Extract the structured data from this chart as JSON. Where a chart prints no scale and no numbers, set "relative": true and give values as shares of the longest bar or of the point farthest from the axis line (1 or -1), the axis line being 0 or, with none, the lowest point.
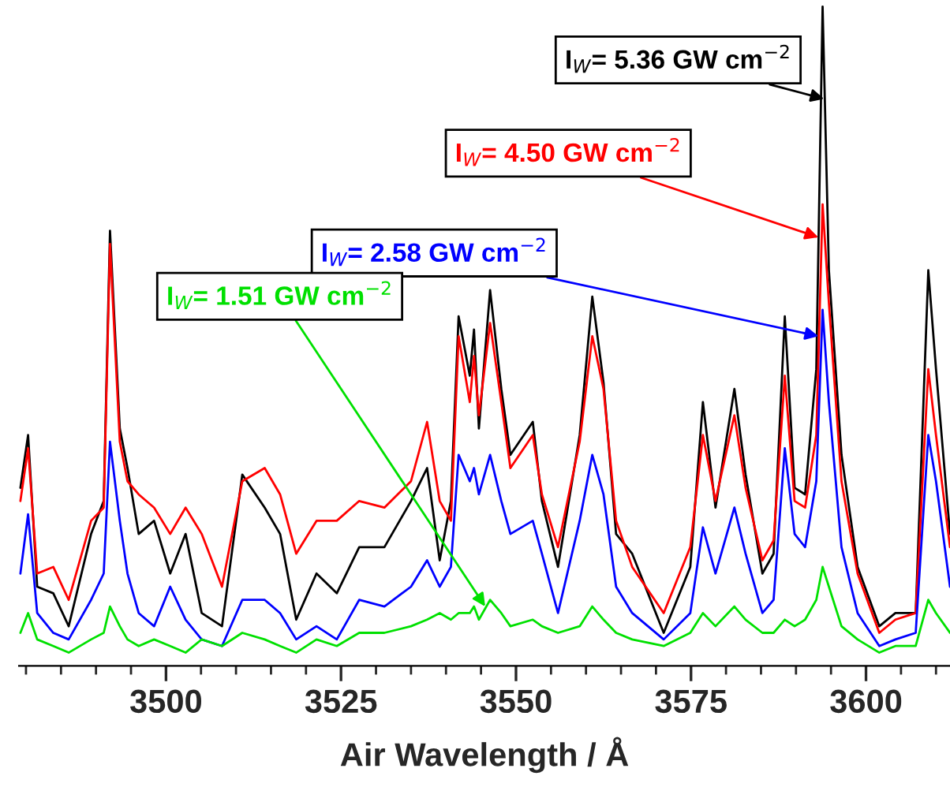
{
  "chart_data": {
    "type": "line",
    "relative": true,
    "xlabel": "Air Wavelength / Å",
    "x": [
      3479.2,
      3480.3,
      3481.6,
      3483.9,
      3486.1,
      3489.3,
      3491.1,
      3492.0,
      3493.4,
      3494.5,
      3496.1,
      3498.3,
      3500.6,
      3502.8,
      3505.1,
      3508.0,
      3510.9,
      3514.1,
      3516.3,
      3518.6,
      3521.5,
      3524.4,
      3527.6,
      3531.2,
      3535.0,
      3537.3,
      3539.1,
      3540.7,
      3541.8,
      3543.4,
      3544.0,
      3544.7,
      3546.3,
      3547.9,
      3549.2,
      3552.4,
      3553.7,
      3556.0,
      3559.1,
      3560.9,
      3562.5,
      3564.3,
      3566.6,
      3571.1,
      3574.9,
      3576.7,
      3578.5,
      3581.2,
      3582.8,
      3585.2,
      3586.8,
      3588.4,
      3589.8,
      3591.3,
      3592.9,
      3593.8,
      3594.7,
      3596.5,
      3598.8,
      3601.9,
      3604.2,
      3607.1,
      3608.9,
      3610.0,
      3612.0
    ],
    "xlim": [
      3479,
      3612
    ],
    "xticks": [
      {
        "value": 3480,
        "label": null
      },
      {
        "value": 3485,
        "label": null
      },
      {
        "value": 3490,
        "label": null
      },
      {
        "value": 3495,
        "label": null
      },
      3500,
      {
        "value": 3505,
        "label": null
      },
      {
        "value": 3510,
        "label": null
      },
      {
        "value": 3515,
        "label": null
      },
      {
        "value": 3520,
        "label": null
      },
      3525,
      {
        "value": 3530,
        "label": null
      },
      {
        "value": 3535,
        "label": null
      },
      {
        "value": 3540,
        "label": null
      },
      {
        "value": 3545,
        "label": null
      },
      3550,
      {
        "value": 3555,
        "label": null
      },
      {
        "value": 3560,
        "label": null
      },
      {
        "value": 3565,
        "label": null
      },
      {
        "value": 3570,
        "label": null
      },
      3575,
      {
        "value": 3580,
        "label": null
      },
      {
        "value": 3585,
        "label": null
      },
      {
        "value": 3590,
        "label": null
      },
      {
        "value": 3595,
        "label": null
      },
      3600,
      {
        "value": 3605,
        "label": null
      },
      {
        "value": 3610,
        "label": null
      }
    ],
    "series": [
      {
        "color": "#000000",
        "values": [
          0.27,
          0.35,
          0.12,
          0.11,
          0.06,
          0.2,
          0.25,
          0.66,
          0.36,
          0.3,
          0.2,
          0.22,
          0.14,
          0.2,
          0.08,
          0.06,
          0.29,
          0.24,
          0.2,
          0.07,
          0.14,
          0.11,
          0.18,
          0.18,
          0.25,
          0.3,
          0.16,
          0.25,
          0.53,
          0.44,
          0.51,
          0.36,
          0.57,
          0.42,
          0.32,
          0.37,
          0.25,
          0.15,
          0.35,
          0.56,
          0.43,
          0.2,
          0.17,
          0.05,
          0.15,
          0.4,
          0.24,
          0.42,
          0.29,
          0.14,
          0.17,
          0.53,
          0.27,
          0.26,
          0.45,
          1.0,
          0.6,
          0.32,
          0.15,
          0.06,
          0.08,
          0.08,
          0.6,
          0.45,
          0.2
        ]
      },
      {
        "color": "#ff0000",
        "values": [
          0.25,
          0.33,
          0.14,
          0.15,
          0.1,
          0.22,
          0.24,
          0.64,
          0.34,
          0.28,
          0.26,
          0.24,
          0.2,
          0.24,
          0.2,
          0.12,
          0.28,
          0.3,
          0.26,
          0.17,
          0.22,
          0.22,
          0.25,
          0.24,
          0.28,
          0.37,
          0.25,
          0.22,
          0.5,
          0.4,
          0.47,
          0.38,
          0.52,
          0.4,
          0.3,
          0.35,
          0.26,
          0.18,
          0.34,
          0.5,
          0.42,
          0.22,
          0.15,
          0.08,
          0.18,
          0.35,
          0.25,
          0.38,
          0.27,
          0.16,
          0.19,
          0.44,
          0.25,
          0.24,
          0.35,
          0.7,
          0.55,
          0.28,
          0.14,
          0.05,
          0.07,
          0.08,
          0.45,
          0.35,
          0.18
        ]
      },
      {
        "color": "#0000ff",
        "values": [
          0.14,
          0.23,
          0.08,
          0.05,
          0.04,
          0.1,
          0.14,
          0.34,
          0.22,
          0.14,
          0.08,
          0.06,
          0.12,
          0.07,
          0.04,
          0.03,
          0.1,
          0.1,
          0.08,
          0.04,
          0.06,
          0.04,
          0.1,
          0.09,
          0.12,
          0.16,
          0.12,
          0.15,
          0.32,
          0.28,
          0.3,
          0.26,
          0.32,
          0.25,
          0.2,
          0.22,
          0.17,
          0.08,
          0.22,
          0.32,
          0.26,
          0.12,
          0.08,
          0.04,
          0.08,
          0.21,
          0.14,
          0.24,
          0.17,
          0.08,
          0.1,
          0.33,
          0.2,
          0.18,
          0.28,
          0.54,
          0.4,
          0.18,
          0.08,
          0.03,
          0.04,
          0.05,
          0.35,
          0.28,
          0.12
        ]
      },
      {
        "color": "#00e000",
        "values": [
          0.05,
          0.08,
          0.04,
          0.03,
          0.02,
          0.04,
          0.05,
          0.09,
          0.06,
          0.04,
          0.03,
          0.04,
          0.03,
          0.02,
          0.04,
          0.03,
          0.05,
          0.04,
          0.03,
          0.02,
          0.04,
          0.03,
          0.05,
          0.05,
          0.06,
          0.07,
          0.08,
          0.07,
          0.08,
          0.08,
          0.09,
          0.07,
          0.1,
          0.08,
          0.06,
          0.07,
          0.06,
          0.05,
          0.06,
          0.09,
          0.07,
          0.05,
          0.04,
          0.03,
          0.05,
          0.08,
          0.06,
          0.09,
          0.07,
          0.05,
          0.05,
          0.07,
          0.06,
          0.07,
          0.1,
          0.15,
          0.12,
          0.06,
          0.04,
          0.02,
          0.03,
          0.03,
          0.1,
          0.08,
          0.05
        ]
      }
    ],
    "annotations": [
      {
        "text": "I$_{W}$= 5.36 GW cm$^{−2}$",
        "x": 3594.0,
        "y": 0.86
      },
      {
        "text": "I$_{W}$= 4.50 GW cm$^{−2}$",
        "x": 3593.2,
        "y": 0.65
      },
      {
        "text": "I$_{W}$= 2.58 GW cm$^{−2}$",
        "x": 3593.2,
        "y": 0.5
      },
      {
        "text": "I$_{W}$= 1.51 GW cm$^{−2}$",
        "x": 3545.6,
        "y": 0.09
      }
    ],
    "grid": false,
    "legend": false
  }
}
